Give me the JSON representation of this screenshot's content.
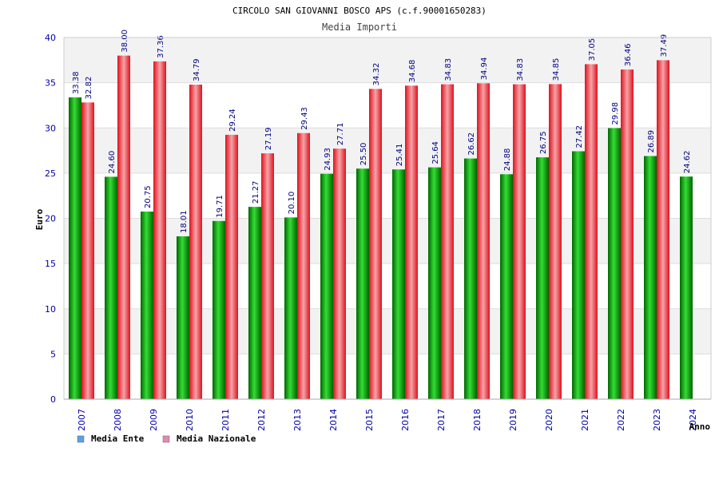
{
  "chart_data": {
    "type": "bar",
    "title": "CIRCOLO SAN GIOVANNI BOSCO APS (c.f.90001650283)",
    "subtitle": "Media Importi",
    "xlabel": "Anno",
    "ylabel": "Euro",
    "ylim": [
      0,
      40
    ],
    "yticks": [
      0,
      5,
      10,
      15,
      20,
      25,
      30,
      35,
      40
    ],
    "grid": true,
    "legend_position": "bottom-left",
    "categories": [
      "2007",
      "2008",
      "2009",
      "2010",
      "2011",
      "2012",
      "2013",
      "2014",
      "2015",
      "2016",
      "2017",
      "2018",
      "2019",
      "2020",
      "2021",
      "2022",
      "2023",
      "2024"
    ],
    "series": [
      {
        "name": "Media Ente",
        "color": "#00aa00",
        "values": [
          33.38,
          24.6,
          20.75,
          18.01,
          19.71,
          21.27,
          20.1,
          24.93,
          25.5,
          25.41,
          25.64,
          26.62,
          24.88,
          26.75,
          27.42,
          29.98,
          26.89,
          24.62
        ],
        "labels": [
          "33.38",
          "24.60",
          "20.75",
          "18.01",
          "19.71",
          "21.27",
          "20.10",
          "24.93",
          "25.50",
          "25.41",
          "25.64",
          "26.62",
          "24.88",
          "26.75",
          "27.42",
          "29.98",
          "26.89",
          "24.62"
        ]
      },
      {
        "name": "Media Nazionale",
        "color": "#e0202a",
        "values": [
          32.82,
          38.0,
          37.36,
          34.79,
          29.24,
          27.19,
          29.43,
          27.71,
          34.32,
          34.68,
          34.83,
          34.94,
          34.83,
          34.85,
          37.05,
          36.46,
          37.49,
          null
        ],
        "labels": [
          "32.82",
          "38.00",
          "37.36",
          "34.79",
          "29.24",
          "27.19",
          "29.43",
          "27.71",
          "34.32",
          "34.68",
          "34.83",
          "34.94",
          "34.83",
          "34.85",
          "37.05",
          "36.46",
          "37.49",
          ""
        ]
      }
    ],
    "legend": [
      {
        "label": "Media Ente",
        "swatch": "#5aa0e6"
      },
      {
        "label": "Media Nazionale",
        "swatch": "#e08ab0"
      }
    ]
  }
}
